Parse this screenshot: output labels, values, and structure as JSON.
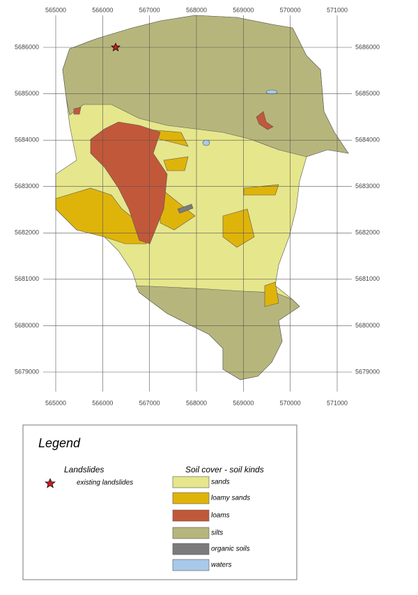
{
  "map": {
    "grid": {
      "xticks": [
        565000,
        566000,
        567000,
        568000,
        569000,
        570000,
        571000
      ],
      "yticks": [
        5686000,
        5685000,
        5684000,
        5683000,
        5682000,
        5681000,
        5680000,
        5679000
      ]
    }
  },
  "legend": {
    "title": "Legend",
    "landslides": {
      "title": "Landslides",
      "items": [
        {
          "label": "existing landslides",
          "color": "#c0201e"
        }
      ]
    },
    "soil": {
      "title": "Soil cover - soil kinds",
      "items": [
        {
          "label": "sands",
          "color": "#e6e68c"
        },
        {
          "label": "loamy sands",
          "color": "#dfb40a"
        },
        {
          "label": "loams",
          "color": "#c2583a"
        },
        {
          "label": "silts",
          "color": "#b6b67c"
        },
        {
          "label": "organic soils",
          "color": "#7b7b7b"
        },
        {
          "label": "waters",
          "color": "#a9c9ea"
        }
      ]
    }
  }
}
